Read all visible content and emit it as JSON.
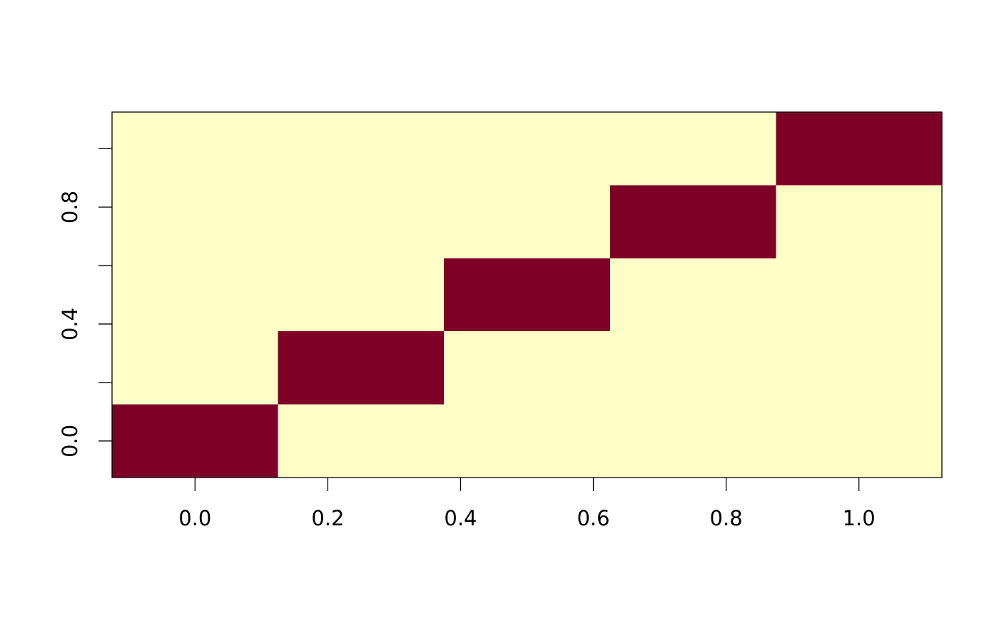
{
  "chart_data": {
    "type": "heatmap",
    "x": [
      0,
      0.25,
      0.5,
      0.75,
      1
    ],
    "y": [
      0,
      0.25,
      0.5,
      0.75,
      1
    ],
    "z": [
      [
        1,
        0,
        0,
        0,
        0
      ],
      [
        0,
        1,
        0,
        0,
        0
      ],
      [
        0,
        0,
        1,
        0,
        0
      ],
      [
        0,
        0,
        0,
        1,
        0
      ],
      [
        0,
        0,
        0,
        0,
        1
      ]
    ],
    "colors": [
      "#ffffc8",
      "#7f0027"
    ],
    "xlim": [
      -0.125,
      1.125
    ],
    "ylim": [
      -0.125,
      1.125
    ],
    "xticks": [
      {
        "value": 0,
        "label": "0.0"
      },
      0.2,
      0.4,
      0.6,
      0.8,
      {
        "value": 1,
        "label": "1.0"
      }
    ],
    "yticks": [
      {
        "value": 0,
        "label": "0.0"
      },
      {
        "value": 0.2,
        "label": null
      },
      0.4,
      {
        "value": 0.6,
        "label": null
      },
      0.8,
      {
        "value": 1,
        "label": null
      }
    ]
  }
}
